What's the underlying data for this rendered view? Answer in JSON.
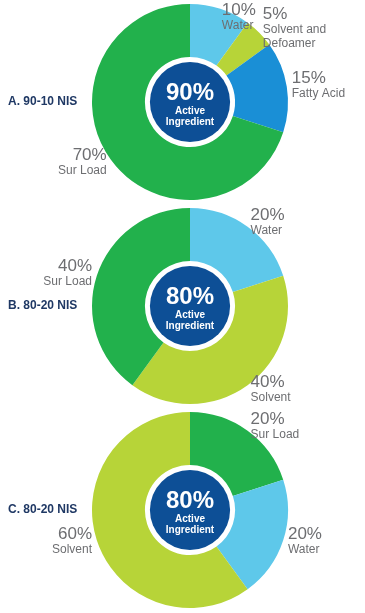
{
  "chart_data": [
    {
      "type": "doughnut",
      "title": "A. 90-10 NIS",
      "annotations": [
        "90%",
        "Active Ingredient"
      ],
      "categories": [
        "Water",
        "Solvent and Defoamer",
        "Fatty Acid",
        "Sur Load"
      ],
      "values": [
        10,
        5,
        15,
        70
      ],
      "value_labels": [
        "10%",
        "5%",
        "15%",
        "70%"
      ],
      "data_labels": true,
      "colors": [
        "#5ec8ea",
        "#b7d438",
        "#1a8fd6",
        "#22b14c"
      ]
    },
    {
      "type": "doughnut",
      "title": "B. 80-20 NIS",
      "annotations": [
        "80%",
        "Active Ingredient"
      ],
      "categories": [
        "Water",
        "Solvent",
        "Sur Load"
      ],
      "values": [
        20,
        40,
        40
      ],
      "value_labels": [
        "20%",
        "40%",
        "40%"
      ],
      "data_labels": true,
      "colors": [
        "#5ec8ea",
        "#b7d438",
        "#22b14c"
      ]
    },
    {
      "type": "doughnut",
      "title": "C. 80-20 NIS",
      "annotations": [
        "80%",
        "Active Ingredient"
      ],
      "categories": [
        "Sur Load",
        "Water",
        "Solvent"
      ],
      "values": [
        20,
        20,
        60
      ],
      "value_labels": [
        "20%",
        "20%",
        "60%"
      ],
      "data_labels": true,
      "colors": [
        "#22b14c",
        "#5ec8ea",
        "#b7d438"
      ]
    }
  ]
}
